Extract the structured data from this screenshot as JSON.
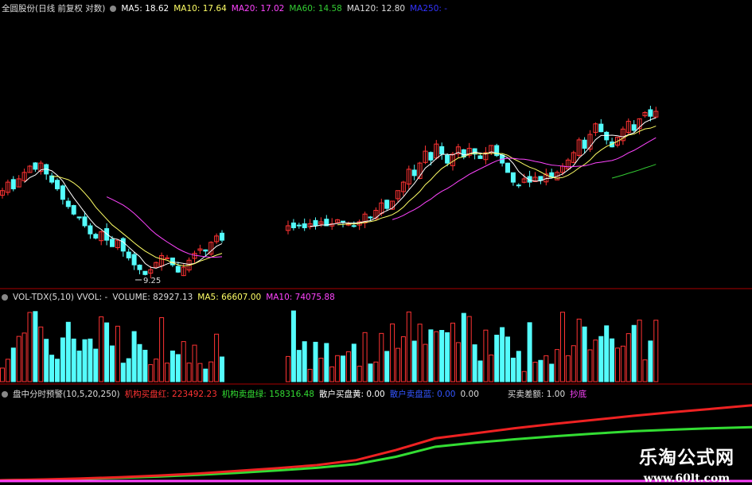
{
  "price_header": {
    "title": "全圆股份(日线 前复权 对数)",
    "ma5": "MA5: 18.62",
    "ma10": "MA10: 17.64",
    "ma20": "MA20: 17.02",
    "ma60": "MA60: 14.58",
    "ma120": "MA120: 12.80",
    "ma250": "MA250: -"
  },
  "vol_header": {
    "title": "VOL-TDX(5,10) VVOL: -",
    "volume": "VOLUME: 82927.13",
    "ma5": "MA5: 66607.00",
    "ma10": "MA10: 74075.88"
  },
  "ind_header": {
    "title": "盘中分时预警(10,5,20,250)",
    "red": "机构买盘红: 223492.23",
    "green": "机构卖盘绿: 158316.48",
    "yellow": "散户买盘黄: 0.00",
    "blue": "散户卖盘蓝: 0.00",
    "zero": "0.00",
    "diff": "买卖差额: 1.00",
    "signal": "抄底"
  },
  "low_label": "9.25",
  "watermark": {
    "name": "乐淘公式网",
    "url": "www.60lt.com"
  },
  "colors": {
    "up": "#ff3333",
    "down": "#54fcfc",
    "ma5": "#ffffff",
    "ma10": "#ffff66",
    "ma20": "#ff44ff",
    "ma60": "#33cc33",
    "ma120": "#ffdddd",
    "ma250": "#3333ff",
    "grid": "#aa0000"
  },
  "chart_data": {
    "type": "candlestick",
    "scale": "log",
    "price_range": [
      9.25,
      19.0
    ],
    "segment1_closes": [
      13.5,
      14,
      13.6,
      14.2,
      14.6,
      15,
      14.8,
      15.2,
      14.5,
      14,
      13.6,
      13,
      12.6,
      12.2,
      12,
      11.6,
      11.2,
      11,
      11.3,
      10.9,
      10.6,
      10.9,
      10.4,
      10.1,
      9.8,
      9.6,
      9.4,
      9.6,
      9.9,
      10.2,
      10.1,
      9.8,
      9.5,
      9.7,
      10.0,
      10.3,
      10.5,
      10.4,
      10.8,
      11.1,
      10.9
    ],
    "segment2_closes": [
      11.6,
      11.5,
      11.6,
      11.5,
      11.7,
      11.6,
      11.8,
      11.6,
      11.7,
      11.9,
      11.8,
      11.7,
      11.6,
      11.8,
      12.2,
      12.0,
      12.4,
      12.8,
      12.5,
      12.9,
      13.5,
      14.0,
      14.8,
      14.4,
      15.2,
      16,
      15.4,
      16.5,
      15.8,
      15.2,
      15.8,
      16.3,
      15.6,
      16.2,
      15.8,
      15.5,
      15.9,
      16.4,
      15.7,
      15.2,
      14.6,
      14.0,
      13.8,
      14.2,
      14.0,
      14.3,
      14.1,
      14.5,
      14.3,
      14.6,
      15.0,
      15.4,
      15.9,
      16.8,
      16.2,
      17.2,
      18.0,
      17.4,
      16.8,
      16.3,
      17.0,
      17.6,
      18.2,
      17.5,
      18.4,
      18.9,
      18.6,
      19.0
    ],
    "volume_max": 150000,
    "indicator_red": [
      0,
      2000,
      5000,
      9000,
      14000,
      20000,
      28000,
      36000,
      45000,
      60000,
      90000,
      125000,
      140000,
      155000,
      168000,
      180000,
      192000,
      203000,
      213000,
      223492
    ],
    "indicator_green": [
      0,
      1500,
      4000,
      7000,
      11000,
      16000,
      22000,
      29000,
      37000,
      48000,
      70000,
      100000,
      112000,
      122000,
      131000,
      139000,
      146000,
      151000,
      155000,
      158316
    ],
    "indicator_max": 230000
  }
}
